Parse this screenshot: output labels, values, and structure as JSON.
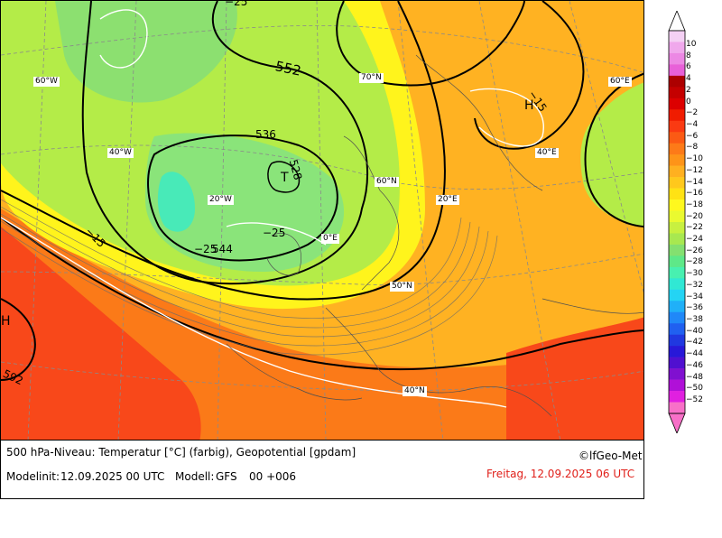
{
  "map": {
    "graticule_labels": [
      "70°N",
      "60°N",
      "50°N",
      "40°N",
      "60°W",
      "40°W",
      "20°W",
      "0°E",
      "20°E",
      "40°E",
      "60°E"
    ],
    "geopotential_labels": [
      "552",
      "536",
      "528",
      "544",
      "592"
    ],
    "temperature_labels": [
      "−25",
      "−15",
      "−25",
      "−15",
      "−25"
    ],
    "pressure_centers": [
      {
        "label": "T",
        "type": "low"
      },
      {
        "label": "H",
        "type": "high"
      },
      {
        "label": "H",
        "type": "high"
      }
    ]
  },
  "footer": {
    "title": "500 hPa-Niveau: Temperatur [°C] (farbig), Geopotential [gpdam]",
    "copyright": "©lfGeo-Met",
    "model_init_label": "Modelinit:",
    "model_init": "12.09.2025 00 UTC",
    "model_label": "Modell:",
    "model_name": "GFS",
    "forecast_step": "00 +006",
    "valid_time": "Freitag, 12.09.2025 06 UTC"
  },
  "colorbar": {
    "ticks": [
      "10",
      "8",
      "6",
      "4",
      "2",
      "0",
      "−2",
      "−4",
      "−6",
      "−8",
      "−10",
      "−12",
      "−14",
      "−16",
      "−18",
      "−20",
      "−22",
      "−24",
      "−26",
      "−28",
      "−30",
      "−32",
      "−34",
      "−36",
      "−38",
      "−40",
      "−42",
      "−44",
      "−46",
      "−48",
      "−50",
      "−52"
    ],
    "colors": [
      "#f4d0f4",
      "#f0a8ec",
      "#ec88e4",
      "#e860d8",
      "#ac0000",
      "#c40000",
      "#dc0000",
      "#f01c00",
      "#fa3a12",
      "#fb5a14",
      "#fd7a18",
      "#fe9418",
      "#ffb020",
      "#ffc81c",
      "#ffe214",
      "#fff81e",
      "#eafa30",
      "#c8f040",
      "#a8e850",
      "#84e070",
      "#5ee888",
      "#48f0b0",
      "#30e8d4",
      "#24d4f4",
      "#20b0f8",
      "#2088f8",
      "#2060f0",
      "#2038e0",
      "#2818d8",
      "#5010d0",
      "#8010d0",
      "#b010d8",
      "#e020e0",
      "#f870c8"
    ]
  }
}
